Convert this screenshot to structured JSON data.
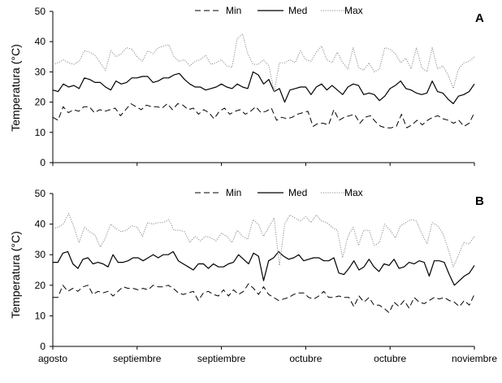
{
  "chart_data": [
    {
      "type": "line",
      "panel": "A",
      "ylabel": "Temperatura  (°C)",
      "ylim": [
        0,
        50
      ],
      "yticks": [
        0,
        10,
        20,
        30,
        40,
        50
      ],
      "xlim": [
        0,
        100
      ],
      "show_x_tick_labels": false,
      "legend": {
        "position": "top-center",
        "entries": [
          "Min",
          "Med",
          "Max"
        ]
      },
      "series": [
        {
          "name": "Min",
          "style": "dashed",
          "values": [
            15,
            14,
            18.5,
            16.5,
            17.5,
            17,
            18.5,
            18.5,
            16.5,
            17.5,
            17,
            17.5,
            18,
            15.5,
            17.5,
            19.5,
            18.5,
            17.5,
            19,
            18.5,
            18.5,
            18,
            19.5,
            17.5,
            19.5,
            19,
            17.5,
            18,
            16,
            17.5,
            16.5,
            14.5,
            17,
            18,
            16,
            17,
            17.5,
            16,
            17,
            18.5,
            16.5,
            17,
            18,
            14,
            15,
            14.5,
            15,
            16,
            16.5,
            17,
            12,
            13,
            13,
            12.5,
            17.5,
            14,
            15,
            15.5,
            16,
            13,
            15,
            15.5,
            13.5,
            12,
            11.5,
            11.5,
            12,
            16,
            11.5,
            12.5,
            14,
            12.5,
            14,
            15,
            15.5,
            14.5,
            14,
            13,
            14,
            12,
            13,
            16.5
          ]
        },
        {
          "name": "Med",
          "style": "solid",
          "values": [
            24,
            23.5,
            26,
            25,
            25.5,
            24.5,
            28,
            27.5,
            26.5,
            26.5,
            25,
            24,
            27,
            26,
            26.5,
            28,
            28,
            28.5,
            28.5,
            26.5,
            27,
            28,
            28,
            29,
            29.5,
            27.5,
            26,
            25,
            25,
            24,
            24.5,
            25,
            26,
            25,
            24.5,
            26,
            25,
            24.5,
            30,
            29,
            26,
            27.5,
            23.5,
            24.5,
            20,
            24,
            24.5,
            25,
            25,
            22.5,
            25,
            26,
            24,
            25.5,
            24,
            22.5,
            25,
            26,
            25.5,
            22.5,
            23,
            22.5,
            20.5,
            22,
            24.5,
            25.5,
            27,
            24.5,
            24,
            23,
            22.5,
            23,
            27,
            23.5,
            23,
            21,
            19.5,
            22,
            22.5,
            23.5,
            26
          ]
        },
        {
          "name": "Max",
          "style": "dotted",
          "values": [
            32.5,
            33,
            34,
            33,
            32.5,
            33.5,
            37,
            36.5,
            35.5,
            33,
            30.5,
            37,
            35,
            36,
            38,
            37.5,
            35,
            33.5,
            37,
            36,
            38,
            38.5,
            39,
            35,
            33.5,
            34,
            32,
            33.5,
            34,
            35.5,
            32.5,
            33,
            34,
            32,
            31.5,
            41,
            42.5,
            36,
            32.5,
            32.5,
            34,
            32,
            23.5,
            33,
            33,
            34,
            33,
            37,
            34,
            33.5,
            36.5,
            38.5,
            34,
            33,
            36.5,
            33,
            31,
            38,
            31.5,
            30.5,
            33,
            30,
            31,
            38,
            37.5,
            36,
            33,
            34.5,
            31,
            38,
            31.5,
            30,
            38,
            31,
            32,
            29,
            24.5,
            31,
            33,
            33.5,
            35
          ]
        }
      ]
    },
    {
      "type": "line",
      "panel": "B",
      "ylabel": "Temperatura  (°C)",
      "ylim": [
        0,
        50
      ],
      "yticks": [
        0,
        10,
        20,
        30,
        40,
        50
      ],
      "xlim": [
        0,
        100
      ],
      "x_tick_labels": [
        "agosto",
        "septiembre",
        "septiembre",
        "octubre",
        "octubre",
        "noviembre"
      ],
      "legend": {
        "position": "top-center",
        "entries": [
          "Min",
          "Med",
          "Max"
        ]
      },
      "series": [
        {
          "name": "Min",
          "style": "dashed",
          "values": [
            16,
            16,
            20,
            18,
            19,
            18,
            19.5,
            20,
            17,
            18,
            17.5,
            18,
            16.5,
            18,
            19.5,
            19,
            19,
            18.5,
            19,
            18.5,
            20,
            19.5,
            19.5,
            20,
            19,
            17.5,
            17,
            17.5,
            18,
            15,
            17.5,
            18,
            17,
            16.5,
            18.5,
            16.5,
            18.5,
            17,
            18,
            20.5,
            19,
            17,
            19.5,
            17,
            16,
            15,
            15.5,
            16,
            17,
            17.5,
            17.5,
            16,
            15.5,
            16.5,
            18,
            16,
            16,
            16.5,
            16,
            16,
            13,
            16.5,
            14.5,
            16,
            13.5,
            13.5,
            12.5,
            11,
            14.5,
            13,
            15,
            12.5,
            16,
            14.5,
            14,
            15,
            16,
            15.5,
            16,
            15,
            14.5,
            13,
            15,
            13.5,
            17
          ]
        },
        {
          "name": "Med",
          "style": "solid",
          "values": [
            27.5,
            27.5,
            30.5,
            31,
            27,
            25.5,
            28.5,
            29,
            27,
            27.5,
            27,
            26,
            30,
            27.5,
            27.5,
            28,
            29,
            29,
            28,
            29,
            30,
            29,
            30,
            30,
            31,
            28,
            27,
            26,
            25,
            27,
            27,
            25.5,
            27,
            26,
            26,
            27,
            27.5,
            30,
            28.5,
            27,
            30.5,
            29.5,
            21.5,
            28,
            29,
            31,
            29.5,
            28.5,
            29,
            30,
            28,
            28.5,
            29,
            29,
            28,
            28,
            29,
            24,
            23.5,
            25.5,
            28,
            25,
            26,
            28.5,
            26,
            24.5,
            27,
            26.5,
            28.5,
            25.5,
            26,
            27.5,
            27,
            28,
            27.5,
            23,
            28,
            28,
            27.5,
            23.5,
            20,
            21.5,
            23,
            24,
            26.5
          ]
        },
        {
          "name": "Max",
          "style": "dotted",
          "values": [
            38.5,
            39,
            40,
            43.5,
            39,
            34,
            39,
            37.5,
            36.5,
            32.5,
            35.5,
            40,
            38.5,
            37.5,
            38,
            39.5,
            39,
            36,
            40.5,
            40,
            40.5,
            40.5,
            41.5,
            38,
            38,
            37.5,
            34,
            36,
            34.5,
            36,
            35.5,
            34.5,
            37,
            36,
            34,
            38,
            36,
            35,
            41.5,
            40,
            36,
            39,
            42,
            26.5,
            40,
            43,
            42,
            41,
            42.5,
            40.5,
            43,
            41,
            40.5,
            39,
            38,
            29,
            36,
            39,
            33,
            38,
            38,
            33,
            34,
            40,
            38,
            35.5,
            39.5,
            40.5,
            41.5,
            41,
            37,
            33.5,
            40.5,
            39.5,
            37,
            32,
            26,
            30,
            34,
            33.5,
            36
          ]
        }
      ]
    }
  ]
}
